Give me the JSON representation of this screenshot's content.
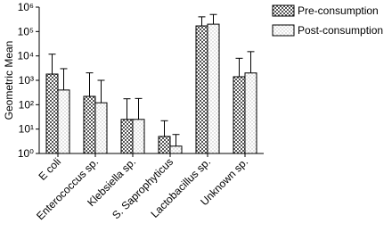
{
  "chart_data": {
    "type": "bar",
    "y_label": "Geometric Mean",
    "categories": [
      "E coli",
      "Enterococcus sp.",
      "Klebsiella sp.",
      "S. Saprophyticus",
      "Lactobacillus sp.",
      "Unknown sp."
    ],
    "series": [
      {
        "name": "Pre-consumption",
        "color": "#555555",
        "values": [
          1800,
          220,
          25,
          5,
          170000,
          1400
        ],
        "errors": [
          10000,
          1800,
          150,
          17,
          230000,
          6600
        ]
      },
      {
        "name": "Post-consumption",
        "color": "#bbbbbb",
        "values": [
          400,
          120,
          25,
          2,
          200000,
          2000
        ],
        "errors": [
          2600,
          880,
          155,
          4,
          300000,
          13000
        ]
      }
    ],
    "log_scale": true,
    "ylim": [
      1,
      1000000
    ],
    "yticks": [
      {
        "value": 1,
        "label": "10⁰"
      },
      {
        "value": 10,
        "label": "10¹"
      },
      {
        "value": 100,
        "label": "10²"
      },
      {
        "value": 1000,
        "label": "10³"
      },
      {
        "value": 10000,
        "label": "10⁴"
      },
      {
        "value": 100000,
        "label": "10⁵"
      },
      {
        "value": 1000000,
        "label": "10⁶"
      }
    ],
    "legend": "top-right"
  }
}
